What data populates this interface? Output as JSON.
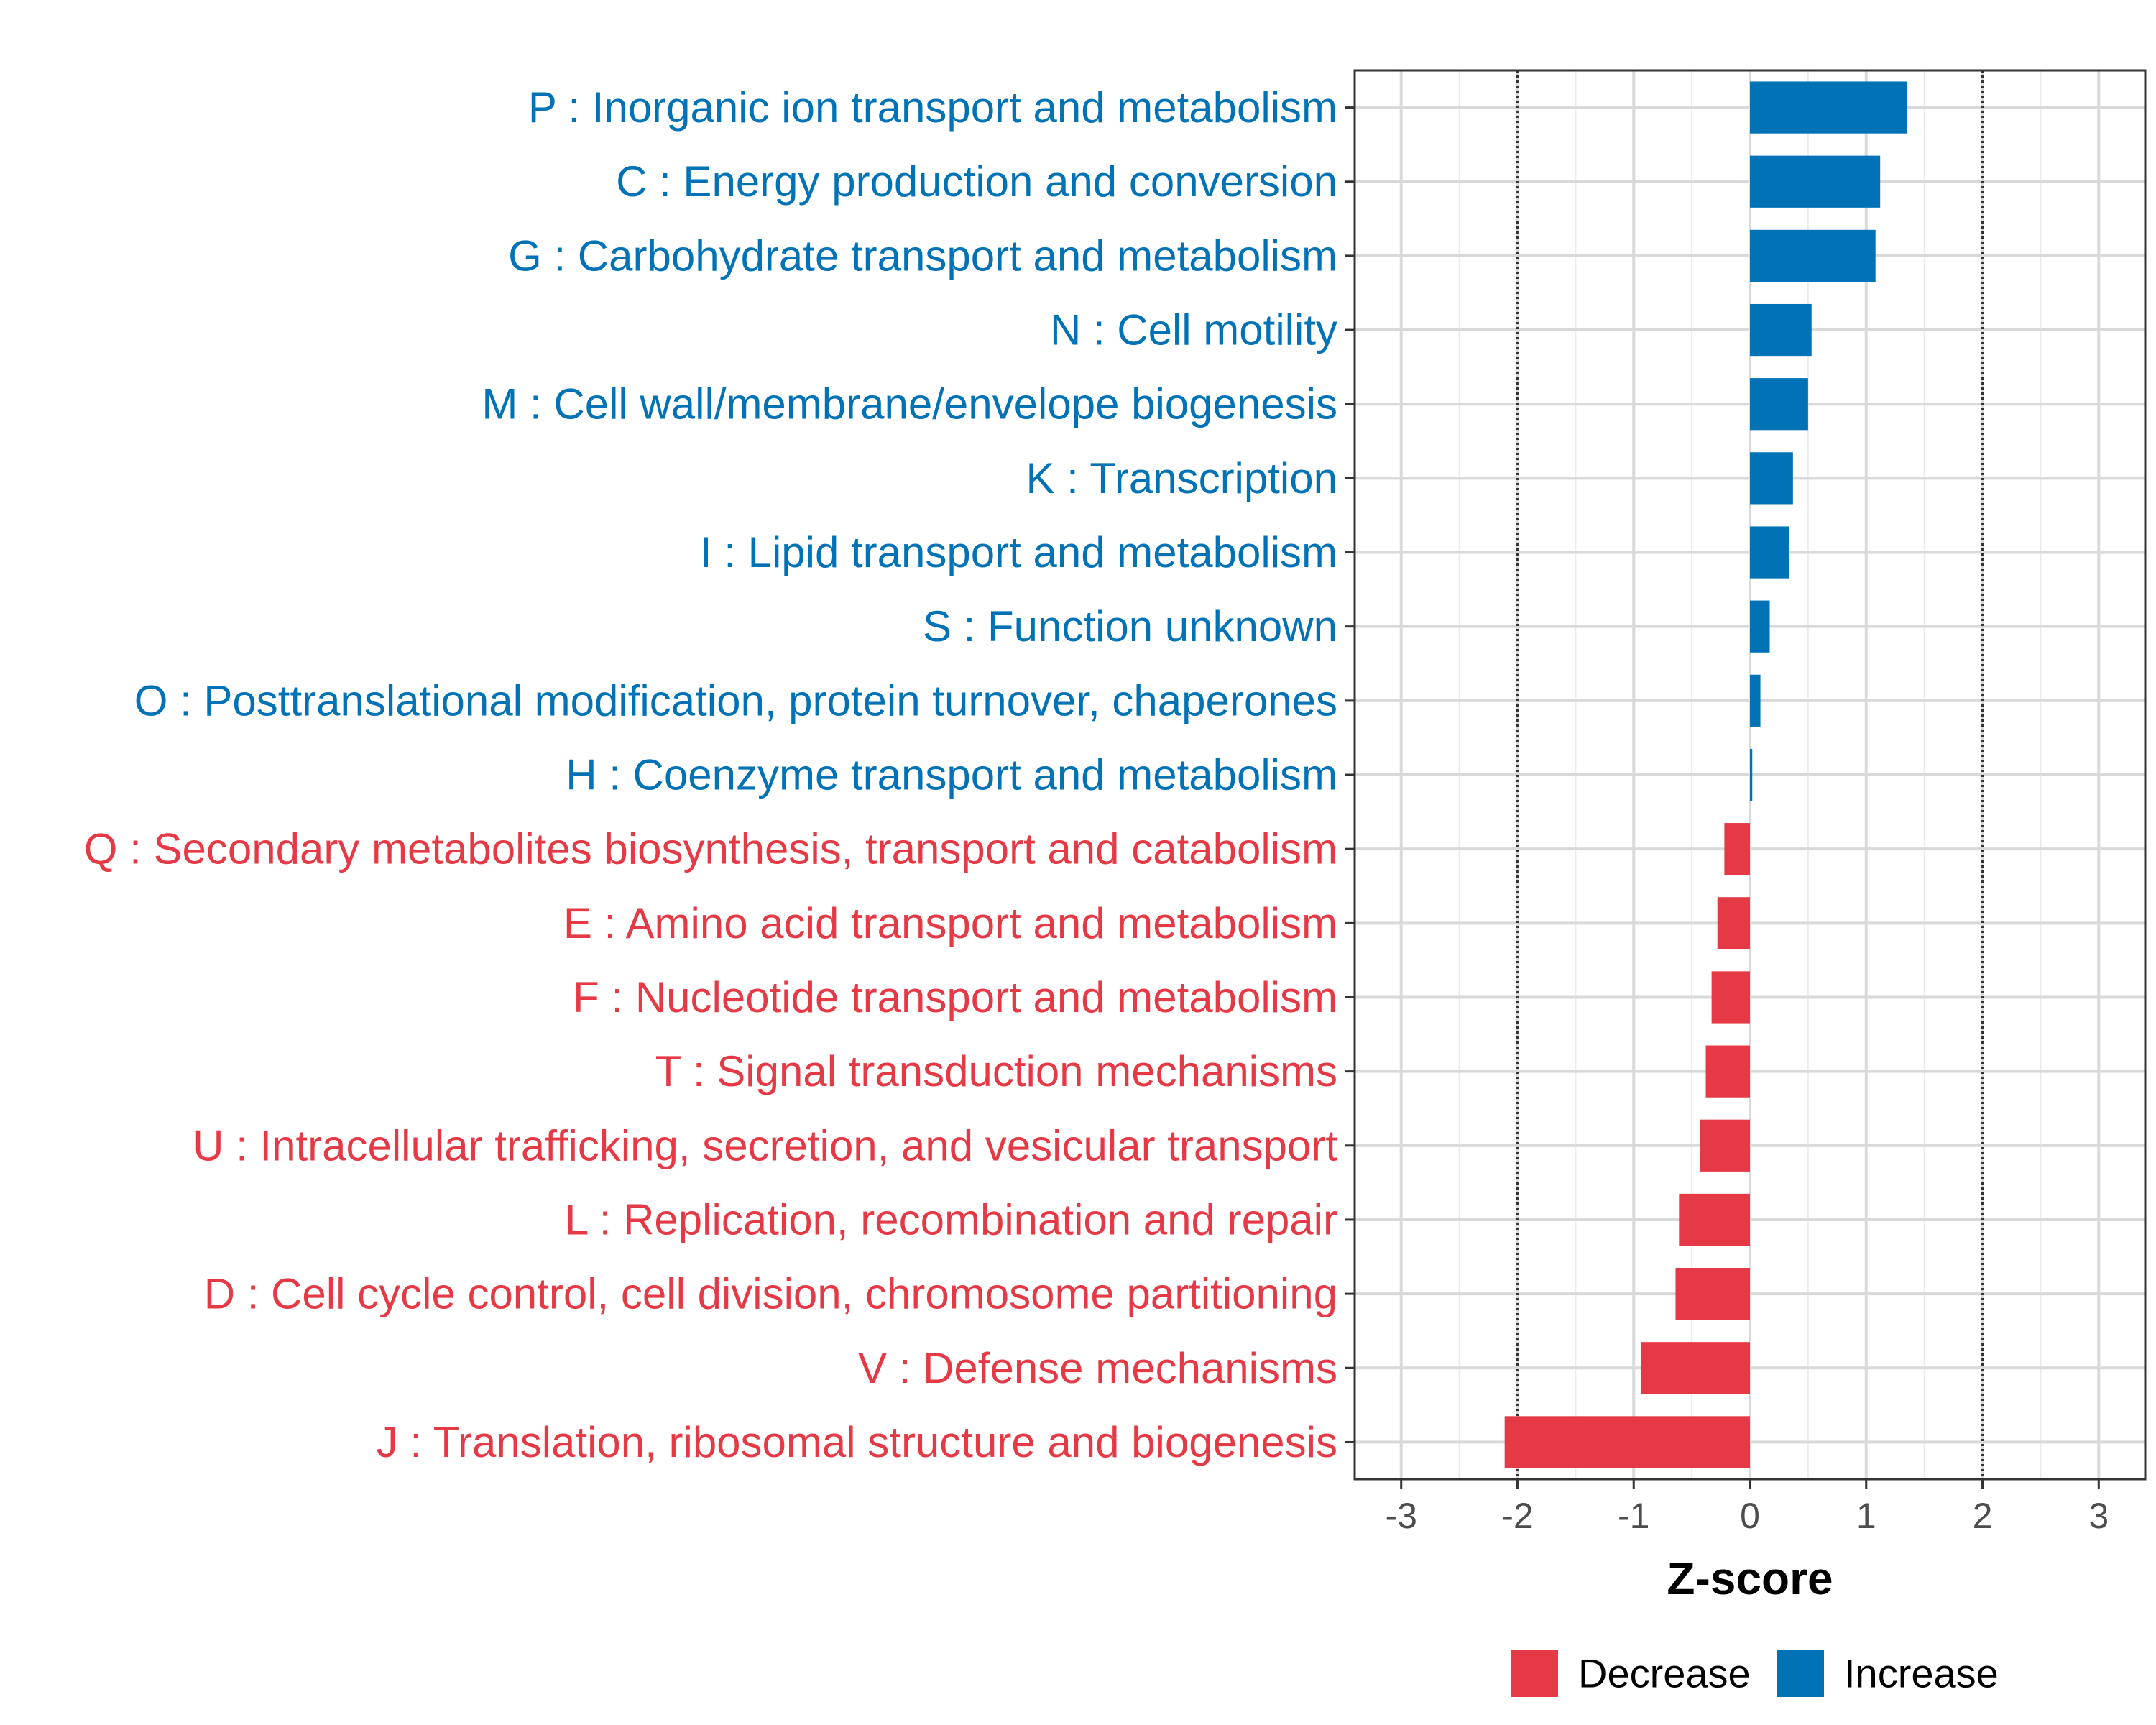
{
  "chart_data": {
    "type": "bar",
    "orientation": "horizontal",
    "xlabel": "Z-score",
    "xlim": [
      -3.4,
      3.4
    ],
    "xticks": [
      -3,
      -2,
      -1,
      0,
      1,
      2,
      3
    ],
    "xtick_labels": [
      "-3",
      "-2",
      "-1",
      "0",
      "1",
      "2",
      "3"
    ],
    "reference_lines": [
      -2,
      2
    ],
    "grid": true,
    "colors": {
      "Increase": "#0072b5",
      "Decrease": "#e63946"
    },
    "categories": [
      "P : Inorganic ion transport and metabolism",
      "C : Energy production and conversion",
      "G : Carbohydrate transport and metabolism",
      "N : Cell motility",
      "M : Cell wall/membrane/envelope biogenesis",
      "K : Transcription",
      "I : Lipid transport and metabolism",
      "S : Function unknown",
      "O : Posttranslational modification, protein turnover, chaperones",
      "H : Coenzyme transport and metabolism",
      "Q : Secondary metabolites biosynthesis, transport and catabolism",
      "E : Amino acid transport and metabolism",
      "F : Nucleotide transport and metabolism",
      "T : Signal transduction mechanisms",
      "U : Intracellular trafficking, secretion, and vesicular transport",
      "L : Replication, recombination and repair",
      "D : Cell cycle control, cell division, chromosome partitioning",
      "V : Defense mechanisms",
      "J : Translation, ribosomal structure and biogenesis"
    ],
    "values": [
      1.35,
      1.12,
      1.08,
      0.53,
      0.5,
      0.37,
      0.34,
      0.17,
      0.09,
      0.02,
      -0.22,
      -0.28,
      -0.33,
      -0.38,
      -0.43,
      -0.61,
      -0.64,
      -0.94,
      -2.11
    ],
    "groups": [
      "Increase",
      "Increase",
      "Increase",
      "Increase",
      "Increase",
      "Increase",
      "Increase",
      "Increase",
      "Increase",
      "Increase",
      "Decrease",
      "Decrease",
      "Decrease",
      "Decrease",
      "Decrease",
      "Decrease",
      "Decrease",
      "Decrease",
      "Decrease"
    ],
    "legend": {
      "position": "bottom",
      "entries": [
        "Decrease",
        "Increase"
      ]
    }
  }
}
